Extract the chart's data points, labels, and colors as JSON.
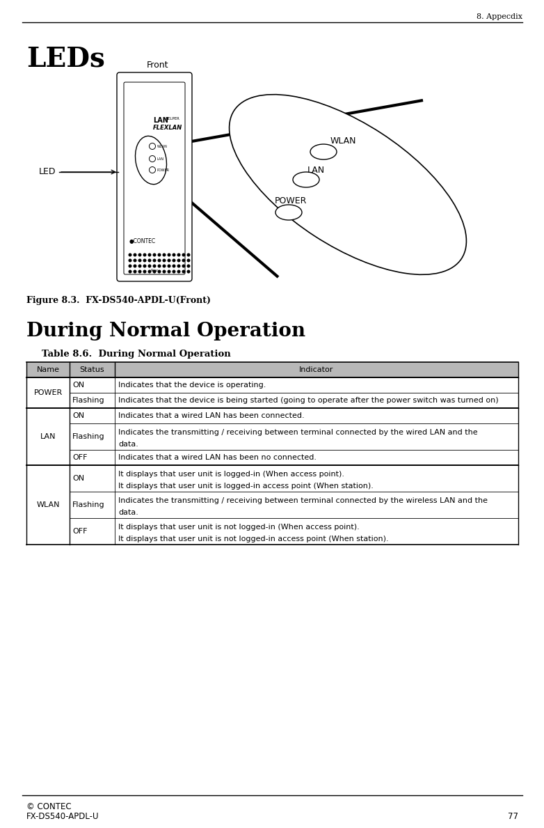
{
  "page_header": "8. Appecdix",
  "section_title": "LEDs",
  "figure_caption": "Figure 8.3.  FX-DS540-APDL-U(Front)",
  "subsection_title": "During Normal Operation",
  "table_title": "Table 8.6.  During Normal Operation",
  "col_headers": [
    "Name",
    "Status",
    "Indicator"
  ],
  "table_rows": [
    [
      "POWER",
      "ON",
      "Indicates that the device is operating."
    ],
    [
      "",
      "Flashing",
      "Indicates that the device is being started (going to operate after the power switch was turned on)"
    ],
    [
      "LAN",
      "ON",
      "Indicates that a wired LAN has been connected."
    ],
    [
      "",
      "Flashing",
      "Indicates the transmitting / receiving between terminal connected by the wired LAN and the\ndata."
    ],
    [
      "",
      "OFF",
      "Indicates that a wired LAN has been no connected."
    ],
    [
      "WLAN",
      "ON",
      "It displays that user unit is logged-in (When access point).\nIt displays that user unit is logged-in access point (When station)."
    ],
    [
      "",
      "Flashing",
      "Indicates the transmitting / receiving between terminal connected by the wireless LAN and the\ndata."
    ],
    [
      "",
      "OFF",
      "It displays that user unit is not logged-in (When access point).\nIt displays that user unit is not logged-in access point (When station)."
    ]
  ],
  "footer_logo": "© CONTEC",
  "footer_model": "FX-DS540-APDL-U",
  "footer_page": "77",
  "bg_color": "#ffffff",
  "text_color": "#000000"
}
